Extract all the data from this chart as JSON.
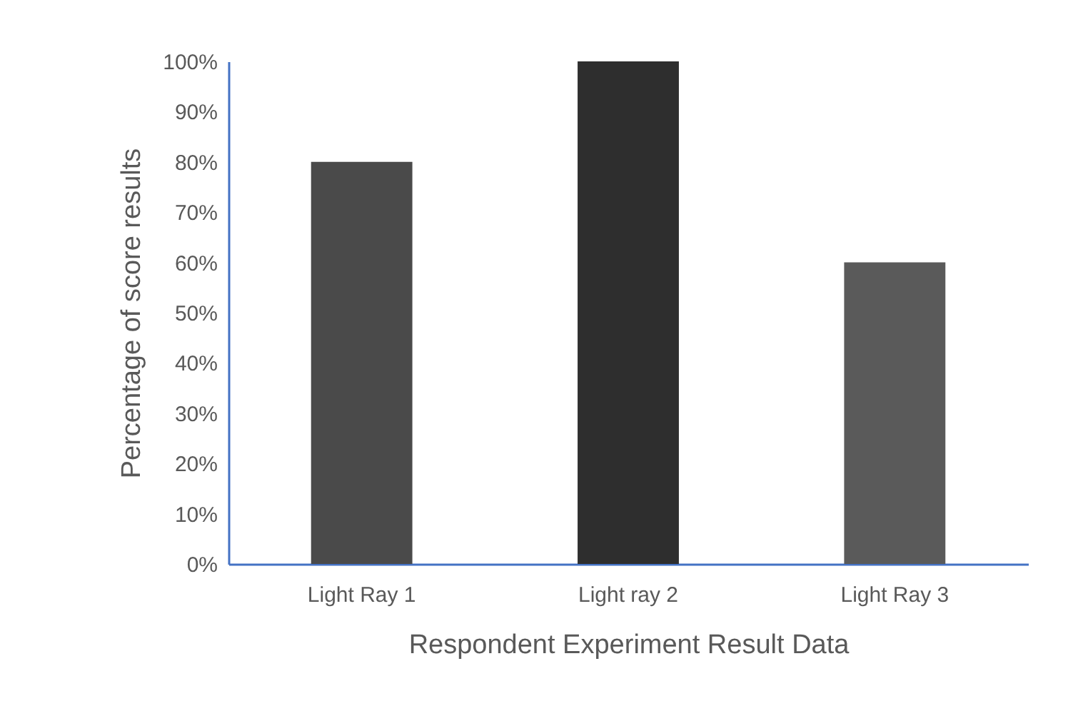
{
  "chart_data": {
    "type": "bar",
    "xlabel": "Respondent Experiment Result Data",
    "ylabel": "Percentage of score results",
    "categories": [
      "Light Ray 1",
      "Light ray 2",
      "Light Ray 3"
    ],
    "values": [
      80,
      100,
      60
    ],
    "colors": [
      "#4a4a4a",
      "#2e2e2e",
      "#5a5a5a"
    ],
    "ylim": [
      0,
      100
    ],
    "yticks": [
      {
        "value": 0,
        "label": "0%"
      },
      {
        "value": 10,
        "label": "10%"
      },
      {
        "value": 20,
        "label": "20%"
      },
      {
        "value": 30,
        "label": "30%"
      },
      {
        "value": 40,
        "label": "40%"
      },
      {
        "value": 50,
        "label": "50%"
      },
      {
        "value": 60,
        "label": "60%"
      },
      {
        "value": 70,
        "label": "70%"
      },
      {
        "value": 80,
        "label": "80%"
      },
      {
        "value": 90,
        "label": "90%"
      },
      {
        "value": 100,
        "label": "100%"
      }
    ],
    "grid": false
  }
}
